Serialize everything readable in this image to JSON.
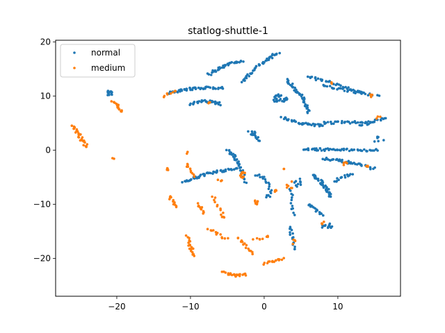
{
  "chart_data": {
    "type": "scatter",
    "title": "statlog-shuttle-1",
    "xlabel": "",
    "ylabel": "",
    "xlim": [
      -28.3,
      18.5
    ],
    "ylim": [
      -27.0,
      20.3
    ],
    "x_ticks": [
      -20,
      -10,
      0,
      10
    ],
    "y_ticks": [
      20,
      10,
      0,
      -10,
      -20
    ],
    "grid": false,
    "legend_position": "top-left",
    "series": [
      {
        "name": "normal",
        "color": "#1f77b4",
        "clusters": [
          {
            "type": "arc",
            "from": [
              -7.5,
              14.0
            ],
            "mid": [
              -5.5,
              16.0
            ],
            "to": [
              -3.0,
              16.5
            ],
            "n": 40
          },
          {
            "type": "arc",
            "from": [
              -3.0,
              12.5
            ],
            "mid": [
              -1.0,
              16.0
            ],
            "to": [
              2.0,
              18.0
            ],
            "n": 45
          },
          {
            "type": "arc",
            "from": [
              -13.0,
              10.5
            ],
            "mid": [
              -10.0,
              11.7
            ],
            "to": [
              -5.5,
              11.5
            ],
            "n": 55
          },
          {
            "type": "arc",
            "from": [
              -10.0,
              8.5
            ],
            "mid": [
              -8.0,
              9.5
            ],
            "to": [
              -6.0,
              8.5
            ],
            "n": 35
          },
          {
            "type": "blob",
            "cx": -21.0,
            "cy": 10.5,
            "rx": 0.4,
            "ry": 0.6,
            "n": 14
          },
          {
            "type": "blob",
            "cx": 2.0,
            "cy": 9.5,
            "rx": 1.2,
            "ry": 0.8,
            "n": 30
          },
          {
            "type": "arc",
            "from": [
              3.0,
              13.0
            ],
            "mid": [
              5.5,
              10.0
            ],
            "to": [
              6.0,
              7.0
            ],
            "n": 45
          },
          {
            "type": "arc",
            "from": [
              2.5,
              6.0
            ],
            "mid": [
              5.0,
              4.5
            ],
            "to": [
              8.0,
              4.6
            ],
            "n": 40
          },
          {
            "type": "arc",
            "from": [
              6.0,
              13.5
            ],
            "mid": [
              9.5,
              12.5
            ],
            "to": [
              13.5,
              10.5
            ],
            "n": 40
          },
          {
            "type": "arc",
            "from": [
              8.0,
              12.0
            ],
            "mid": [
              11.0,
              11.0
            ],
            "to": [
              15.5,
              10.0
            ],
            "n": 30
          },
          {
            "type": "arc",
            "from": [
              8.0,
              5.0
            ],
            "mid": [
              11.5,
              5.3
            ],
            "to": [
              14.5,
              5.0
            ],
            "n": 30
          },
          {
            "type": "arc",
            "from": [
              13.0,
              4.5
            ],
            "mid": [
              15.0,
              5.5
            ],
            "to": [
              16.5,
              6.0
            ],
            "n": 20
          },
          {
            "type": "arc",
            "from": [
              -2.0,
              3.5
            ],
            "mid": [
              -1.0,
              2.5
            ],
            "to": [
              -0.5,
              1.5
            ],
            "n": 10
          },
          {
            "type": "arc",
            "from": [
              5.5,
              0.2
            ],
            "mid": [
              10.0,
              0.0
            ],
            "to": [
              15.5,
              0.0
            ],
            "n": 55
          },
          {
            "type": "arc",
            "from": [
              8.0,
              -1.5
            ],
            "mid": [
              11.0,
              -2.0
            ],
            "to": [
              15.0,
              -3.5
            ],
            "n": 45
          },
          {
            "type": "arc",
            "from": [
              -11.0,
              -6.0
            ],
            "mid": [
              -8.0,
              -4.0
            ],
            "to": [
              -3.5,
              -3.5
            ],
            "n": 55
          },
          {
            "type": "arc",
            "from": [
              -5.0,
              0.0
            ],
            "mid": [
              -3.5,
              -1.5
            ],
            "to": [
              -2.5,
              -6.0
            ],
            "n": 35
          },
          {
            "type": "arc",
            "from": [
              -1.0,
              -4.5
            ],
            "mid": [
              0.5,
              -5.0
            ],
            "to": [
              1.0,
              -8.5
            ],
            "n": 18
          },
          {
            "type": "arc",
            "from": [
              6.5,
              -4.5
            ],
            "mid": [
              8.5,
              -6.5
            ],
            "to": [
              9.0,
              -8.5
            ],
            "n": 40
          },
          {
            "type": "arc",
            "from": [
              6.0,
              -10.0
            ],
            "mid": [
              7.0,
              -11.0
            ],
            "to": [
              8.0,
              -12.0
            ],
            "n": 18
          },
          {
            "type": "blob",
            "cx": 8.5,
            "cy": -14.0,
            "rx": 0.8,
            "ry": 0.5,
            "n": 14
          },
          {
            "type": "arc",
            "from": [
              3.5,
              -14.0
            ],
            "mid": [
              3.8,
              -16.0
            ],
            "to": [
              4.0,
              -18.5
            ],
            "n": 16
          },
          {
            "type": "arc",
            "from": [
              3.5,
              -7.0
            ],
            "mid": [
              3.8,
              -9.5
            ],
            "to": [
              4.0,
              -12.0
            ],
            "n": 12
          },
          {
            "type": "blob",
            "cx": 4.7,
            "cy": -6.0,
            "rx": 0.6,
            "ry": 0.8,
            "n": 10
          },
          {
            "type": "arc",
            "from": [
              9.5,
              -6.0
            ],
            "mid": [
              10.5,
              -4.8
            ],
            "to": [
              12.0,
              -4.5
            ],
            "n": 15
          },
          {
            "type": "blob",
            "cx": -1.5,
            "cy": 3.0,
            "rx": 0.3,
            "ry": 0.6,
            "n": 8
          },
          {
            "type": "blob",
            "cx": 0.5,
            "cy": -8.5,
            "rx": 0.3,
            "ry": 0.3,
            "n": 4
          },
          {
            "type": "blob",
            "cx": 15.5,
            "cy": 2.0,
            "rx": 0.8,
            "ry": 0.6,
            "n": 6
          }
        ]
      },
      {
        "name": "medium",
        "color": "#ff7f0e",
        "clusters": [
          {
            "type": "arc",
            "from": [
              -20.5,
              9.0
            ],
            "mid": [
              -19.5,
              8.2
            ],
            "to": [
              -19.5,
              7.0
            ],
            "n": 14
          },
          {
            "type": "arc",
            "from": [
              -26.0,
              4.5
            ],
            "mid": [
              -25.0,
              2.5
            ],
            "to": [
              -24.0,
              0.5
            ],
            "n": 28
          },
          {
            "type": "arc",
            "from": [
              -13.5,
              10.0
            ],
            "mid": [
              -13.0,
              10.5
            ],
            "to": [
              -12.0,
              11.0
            ],
            "n": 8
          },
          {
            "type": "blob",
            "cx": -20.5,
            "cy": -1.5,
            "rx": 0.2,
            "ry": 0.2,
            "n": 2
          },
          {
            "type": "blob",
            "cx": -13.0,
            "cy": -3.5,
            "rx": 0.3,
            "ry": 0.3,
            "n": 5
          },
          {
            "type": "arc",
            "from": [
              -10.5,
              -2.5
            ],
            "mid": [
              -10.0,
              -3.5
            ],
            "to": [
              -9.5,
              -5.0
            ],
            "n": 10
          },
          {
            "type": "arc",
            "from": [
              -12.8,
              -8.5
            ],
            "mid": [
              -12.5,
              -9.5
            ],
            "to": [
              -12.0,
              -10.5
            ],
            "n": 12
          },
          {
            "type": "arc",
            "from": [
              -9.0,
              -10.0
            ],
            "mid": [
              -8.5,
              -10.8
            ],
            "to": [
              -8.3,
              -11.5
            ],
            "n": 10
          },
          {
            "type": "arc",
            "from": [
              -7.0,
              -8.5
            ],
            "mid": [
              -6.5,
              -10.0
            ],
            "to": [
              -6.0,
              -11.0
            ],
            "n": 8
          },
          {
            "type": "arc",
            "from": [
              -7.5,
              -14.5
            ],
            "mid": [
              -6.5,
              -15.5
            ],
            "to": [
              -5.0,
              -16.5
            ],
            "n": 12
          },
          {
            "type": "blob",
            "cx": -5.5,
            "cy": -12.0,
            "rx": 0.4,
            "ry": 0.5,
            "n": 6
          },
          {
            "type": "arc",
            "from": [
              -10.5,
              -16.0
            ],
            "mid": [
              -10.0,
              -18.0
            ],
            "to": [
              -9.5,
              -19.5
            ],
            "n": 18
          },
          {
            "type": "arc",
            "from": [
              -3.5,
              -16.0
            ],
            "mid": [
              -2.5,
              -18.0
            ],
            "to": [
              -1.5,
              -19.0
            ],
            "n": 15
          },
          {
            "type": "arc",
            "from": [
              -5.5,
              -22.5
            ],
            "mid": [
              -4.0,
              -23.5
            ],
            "to": [
              -2.5,
              -23.0
            ],
            "n": 22
          },
          {
            "type": "arc",
            "from": [
              0.0,
              -21.0
            ],
            "mid": [
              1.5,
              -20.5
            ],
            "to": [
              2.5,
              -20.0
            ],
            "n": 15
          },
          {
            "type": "arc",
            "from": [
              -1.5,
              -16.5
            ],
            "mid": [
              0.0,
              -16.3
            ],
            "to": [
              0.5,
              -16.0
            ],
            "n": 8
          },
          {
            "type": "blob",
            "cx": -3.0,
            "cy": -4.5,
            "rx": 0.5,
            "ry": 0.6,
            "n": 10
          },
          {
            "type": "blob",
            "cx": -1.0,
            "cy": -9.5,
            "rx": 0.4,
            "ry": 0.5,
            "n": 6
          },
          {
            "type": "blob",
            "cx": 1.5,
            "cy": -7.5,
            "rx": 0.3,
            "ry": 0.3,
            "n": 4
          },
          {
            "type": "blob",
            "cx": 3.5,
            "cy": -6.5,
            "rx": 0.5,
            "ry": 0.8,
            "n": 6
          },
          {
            "type": "blob",
            "cx": 4.0,
            "cy": -17.0,
            "rx": 0.3,
            "ry": 0.6,
            "n": 4
          },
          {
            "type": "blob",
            "cx": 8.0,
            "cy": -13.5,
            "rx": 0.3,
            "ry": 0.3,
            "n": 3
          },
          {
            "type": "blob",
            "cx": 11.0,
            "cy": -2.5,
            "rx": 0.5,
            "ry": 0.3,
            "n": 4
          },
          {
            "type": "blob",
            "cx": 14.0,
            "cy": -3.0,
            "rx": 0.4,
            "ry": 0.3,
            "n": 3
          },
          {
            "type": "blob",
            "cx": 14.5,
            "cy": 10.0,
            "rx": 0.3,
            "ry": 0.3,
            "n": 3
          },
          {
            "type": "blob",
            "cx": 9.0,
            "cy": 12.5,
            "rx": 0.3,
            "ry": 0.3,
            "n": 2
          },
          {
            "type": "blob",
            "cx": 15.5,
            "cy": 6.0,
            "rx": 0.3,
            "ry": 0.3,
            "n": 3
          },
          {
            "type": "blob",
            "cx": -7.5,
            "cy": 8.7,
            "rx": 0.3,
            "ry": 0.3,
            "n": 3
          },
          {
            "type": "blob",
            "cx": -10.5,
            "cy": -0.5,
            "rx": 0.2,
            "ry": 0.2,
            "n": 2
          },
          {
            "type": "blob",
            "cx": 2.5,
            "cy": -3.5,
            "rx": 0.2,
            "ry": 0.2,
            "n": 2
          },
          {
            "type": "blob",
            "cx": -6.0,
            "cy": -5.5,
            "rx": 0.3,
            "ry": 0.3,
            "n": 3
          }
        ]
      }
    ]
  }
}
